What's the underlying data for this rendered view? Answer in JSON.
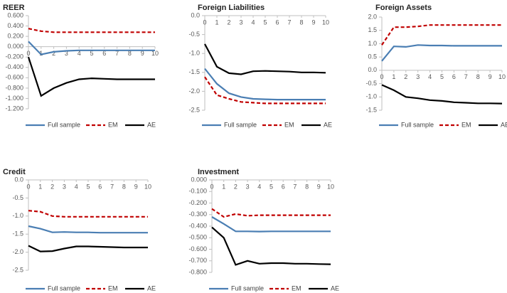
{
  "chart_data": [
    {
      "type": "line",
      "title": "REER",
      "x": [
        0,
        1,
        2,
        3,
        4,
        5,
        6,
        7,
        8,
        9,
        10
      ],
      "xlim": [
        0,
        10
      ],
      "xticks": [
        0,
        1,
        2,
        3,
        4,
        5,
        6,
        7,
        8,
        9,
        10
      ],
      "ylim": [
        -1.2,
        0.6
      ],
      "yticks": [
        {
          "value": 0.6,
          "label": "0.600"
        },
        {
          "value": 0.4,
          "label": "0.400"
        },
        {
          "value": 0.2,
          "label": "0.200"
        },
        {
          "value": 0,
          "label": "0.000"
        },
        {
          "value": -0.2,
          "label": "-0.200"
        },
        {
          "value": -0.4,
          "label": "-0.400"
        },
        {
          "value": -0.6,
          "label": "-0.600"
        },
        {
          "value": -0.8,
          "label": "-0.800"
        },
        {
          "value": -1.0,
          "label": "-1.000"
        },
        {
          "value": -1.2,
          "label": "-1.200"
        }
      ],
      "series": [
        {
          "name": "Full sample",
          "color": "#4a7eb3",
          "style": "solid",
          "values": [
            0.1,
            -0.15,
            -0.1,
            -0.08,
            -0.07,
            -0.07,
            -0.07,
            -0.07,
            -0.07,
            -0.07,
            -0.07
          ]
        },
        {
          "name": "EM",
          "color": "#c00000",
          "style": "dashed",
          "values": [
            0.35,
            0.3,
            0.28,
            0.28,
            0.28,
            0.28,
            0.28,
            0.28,
            0.28,
            0.28,
            0.28
          ]
        },
        {
          "name": "AE",
          "color": "#000000",
          "style": "solid",
          "values": [
            -0.2,
            -0.95,
            -0.8,
            -0.7,
            -0.63,
            -0.61,
            -0.62,
            -0.63,
            -0.63,
            -0.63,
            -0.63
          ]
        }
      ]
    },
    {
      "type": "line",
      "title": "Foreign Liabilities",
      "x": [
        0,
        1,
        2,
        3,
        4,
        5,
        6,
        7,
        8,
        9,
        10
      ],
      "xlim": [
        0,
        10
      ],
      "xticks": [
        0,
        1,
        2,
        3,
        4,
        5,
        6,
        7,
        8,
        9,
        10
      ],
      "ylim": [
        -2.5,
        0
      ],
      "yticks": [
        {
          "value": 0,
          "label": "0.0"
        },
        -0.5,
        {
          "value": -1,
          "label": "-1.0"
        },
        -1.5,
        {
          "value": -2,
          "label": "-2.0"
        },
        -2.5
      ],
      "series": [
        {
          "name": "Full sample",
          "color": "#4a7eb3",
          "style": "solid",
          "values": [
            -1.4,
            -1.8,
            -2.05,
            -2.15,
            -2.2,
            -2.21,
            -2.22,
            -2.22,
            -2.22,
            -2.22,
            -2.22
          ]
        },
        {
          "name": "EM",
          "color": "#c00000",
          "style": "dashed",
          "values": [
            -1.62,
            -2.1,
            -2.2,
            -2.28,
            -2.3,
            -2.32,
            -2.32,
            -2.32,
            -2.32,
            -2.32,
            -2.32
          ]
        },
        {
          "name": "AE",
          "color": "#000000",
          "style": "solid",
          "values": [
            -0.75,
            -1.35,
            -1.52,
            -1.55,
            -1.47,
            -1.46,
            -1.47,
            -1.48,
            -1.5,
            -1.5,
            -1.51
          ]
        }
      ]
    },
    {
      "type": "line",
      "title": "Foreign Assets",
      "x": [
        0,
        1,
        2,
        3,
        4,
        5,
        6,
        7,
        8,
        9,
        10
      ],
      "xlim": [
        0,
        10
      ],
      "xticks": [
        0,
        1,
        2,
        3,
        4,
        5,
        6,
        7,
        8,
        9,
        10
      ],
      "ylim": [
        -1.5,
        2
      ],
      "yticks": [
        {
          "value": 2,
          "label": "2.0"
        },
        1.5,
        {
          "value": 1,
          "label": "1.0"
        },
        0.5,
        {
          "value": 0,
          "label": "0.0"
        },
        -0.5,
        {
          "value": -1,
          "label": "-1.0"
        },
        -1.5
      ],
      "series": [
        {
          "name": "Full sample",
          "color": "#4a7eb3",
          "style": "solid",
          "values": [
            0.35,
            0.9,
            0.88,
            0.95,
            0.93,
            0.93,
            0.92,
            0.92,
            0.92,
            0.92,
            0.92
          ]
        },
        {
          "name": "EM",
          "color": "#c00000",
          "style": "dashed",
          "values": [
            0.95,
            1.62,
            1.62,
            1.65,
            1.7,
            1.7,
            1.7,
            1.7,
            1.7,
            1.7,
            1.7
          ]
        },
        {
          "name": "AE",
          "color": "#000000",
          "style": "solid",
          "values": [
            -0.55,
            -0.75,
            -1.0,
            -1.05,
            -1.12,
            -1.15,
            -1.2,
            -1.22,
            -1.24,
            -1.24,
            -1.25
          ]
        }
      ]
    },
    {
      "type": "line",
      "title": "Credit",
      "x": [
        0,
        1,
        2,
        3,
        4,
        5,
        6,
        7,
        8,
        9,
        10
      ],
      "xlim": [
        0,
        10
      ],
      "xticks": [
        0,
        1,
        2,
        3,
        4,
        5,
        6,
        7,
        8,
        9,
        10
      ],
      "ylim": [
        -2.5,
        0
      ],
      "yticks": [
        {
          "value": 0,
          "label": "0.0"
        },
        -0.5,
        {
          "value": -1,
          "label": "-1.0"
        },
        -1.5,
        {
          "value": -2,
          "label": "-2.0"
        },
        -2.5
      ],
      "series": [
        {
          "name": "Full sample",
          "color": "#4a7eb3",
          "style": "solid",
          "values": [
            -1.28,
            -1.35,
            -1.45,
            -1.44,
            -1.45,
            -1.45,
            -1.46,
            -1.46,
            -1.46,
            -1.46,
            -1.46
          ]
        },
        {
          "name": "EM",
          "color": "#c00000",
          "style": "dashed",
          "values": [
            -0.85,
            -0.88,
            -1.0,
            -1.02,
            -1.02,
            -1.02,
            -1.02,
            -1.02,
            -1.02,
            -1.02,
            -1.02
          ]
        },
        {
          "name": "AE",
          "color": "#000000",
          "style": "solid",
          "values": [
            -1.82,
            -1.98,
            -1.97,
            -1.9,
            -1.84,
            -1.84,
            -1.85,
            -1.86,
            -1.87,
            -1.87,
            -1.87
          ]
        }
      ]
    },
    {
      "type": "line",
      "title": "Investment",
      "x": [
        0,
        1,
        2,
        3,
        4,
        5,
        6,
        7,
        8,
        9,
        10
      ],
      "xlim": [
        0,
        10
      ],
      "xticks": [
        0,
        1,
        2,
        3,
        4,
        5,
        6,
        7,
        8,
        9,
        10
      ],
      "ylim": [
        -0.8,
        0
      ],
      "yticks": [
        {
          "value": 0,
          "label": "0.000"
        },
        {
          "value": -0.1,
          "label": "-0.100"
        },
        {
          "value": -0.2,
          "label": "-0.200"
        },
        {
          "value": -0.3,
          "label": "-0.300"
        },
        {
          "value": -0.4,
          "label": "-0.400"
        },
        {
          "value": -0.5,
          "label": "-0.500"
        },
        {
          "value": -0.6,
          "label": "-0.600"
        },
        {
          "value": -0.7,
          "label": "-0.700"
        },
        {
          "value": -0.8,
          "label": "-0.800"
        }
      ],
      "series": [
        {
          "name": "Full sample",
          "color": "#4a7eb3",
          "style": "solid",
          "values": [
            -0.32,
            -0.38,
            -0.445,
            -0.445,
            -0.447,
            -0.445,
            -0.445,
            -0.445,
            -0.445,
            -0.445,
            -0.445
          ]
        },
        {
          "name": "EM",
          "color": "#c00000",
          "style": "dashed",
          "values": [
            -0.25,
            -0.32,
            -0.295,
            -0.31,
            -0.305,
            -0.305,
            -0.305,
            -0.305,
            -0.305,
            -0.305,
            -0.305
          ]
        },
        {
          "name": "AE",
          "color": "#000000",
          "style": "solid",
          "values": [
            -0.41,
            -0.5,
            -0.735,
            -0.7,
            -0.725,
            -0.72,
            -0.72,
            -0.725,
            -0.725,
            -0.728,
            -0.73
          ]
        }
      ]
    }
  ]
}
